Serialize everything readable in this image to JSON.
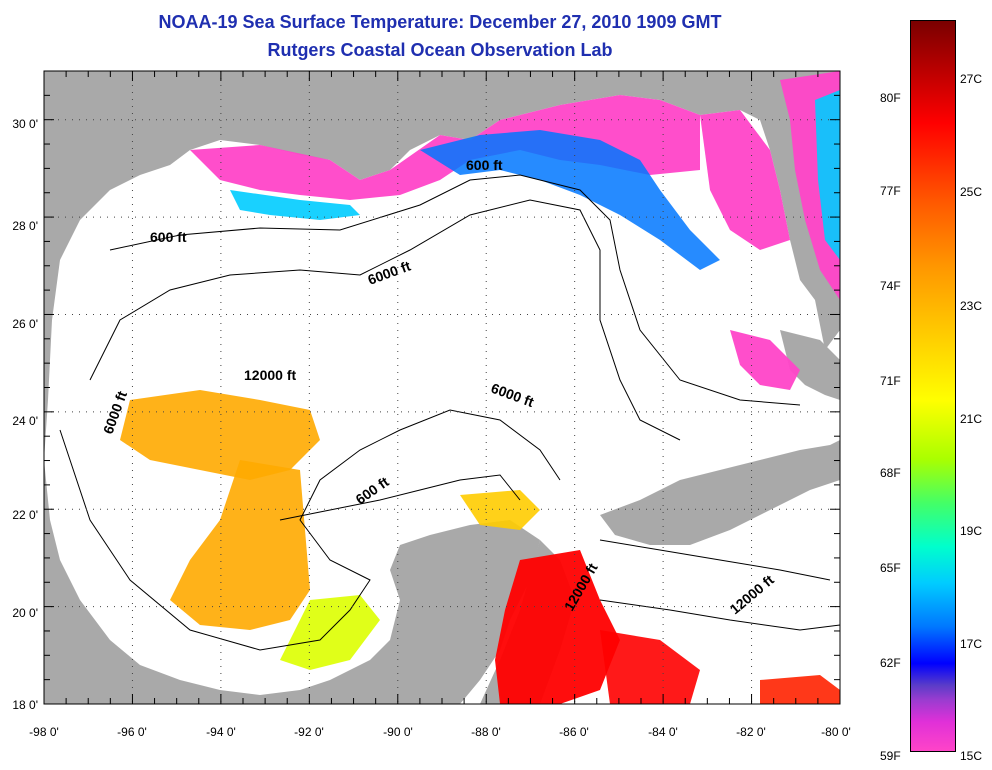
{
  "title": {
    "line1": "NOAA-19 Sea Surface Temperature:  December 27, 2010 1909 GMT",
    "line2": "Rutgers Coastal Ocean Observation Lab"
  },
  "map": {
    "lon_range": [
      -98,
      -80
    ],
    "lat_range": [
      18,
      31
    ],
    "x_ticks": [
      "-98 0'",
      "-96 0'",
      "-94 0'",
      "-92 0'",
      "-90 0'",
      "-88 0'",
      "-86 0'",
      "-84 0'",
      "-82 0'",
      "-80 0'"
    ],
    "y_ticks": [
      "18 0'",
      "20 0'",
      "22 0'",
      "24 0'",
      "26 0'",
      "28 0'",
      "30 0'"
    ],
    "contour_labels": [
      "600 ft",
      "600 ft",
      "600 ft",
      "6000 ft",
      "6000 ft",
      "6000 ft",
      "12000 ft",
      "12000 ft",
      "12000 ft"
    ]
  },
  "colorbar": {
    "fahrenheit": [
      "80F",
      "77F",
      "74F",
      "71F",
      "68F",
      "65F",
      "62F",
      "59F"
    ],
    "celsius": [
      "27C",
      "25C",
      "23C",
      "21C",
      "19C",
      "17C",
      "15C"
    ],
    "colors": {
      "land": "#a9a9a9",
      "warm": "#ff0000",
      "mid": "#ffcc00",
      "cool": "#00ccff",
      "cold": "#ff44c8"
    }
  }
}
